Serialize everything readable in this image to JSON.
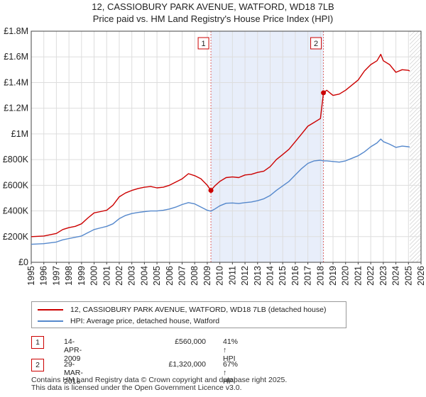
{
  "chart_data": {
    "type": "line",
    "title": "12, CASSIOBURY PARK AVENUE, WATFORD, WD18 7LB",
    "subtitle": "Price paid vs. HM Land Registry's House Price Index (HPI)",
    "xlim": [
      1995,
      2026
    ],
    "ylim": [
      0,
      1800000
    ],
    "x_ticks": [
      1995,
      1996,
      1997,
      1998,
      1999,
      2000,
      2001,
      2002,
      2003,
      2004,
      2005,
      2006,
      2007,
      2008,
      2009,
      2010,
      2011,
      2012,
      2013,
      2014,
      2015,
      2016,
      2017,
      2018,
      2019,
      2020,
      2021,
      2022,
      2023,
      2024,
      2025,
      2026
    ],
    "y_ticks": [
      {
        "value": 0,
        "label": "£0"
      },
      {
        "value": 200000,
        "label": "£200K"
      },
      {
        "value": 400000,
        "label": "£400K"
      },
      {
        "value": 600000,
        "label": "£600K"
      },
      {
        "value": 800000,
        "label": "£800K"
      },
      {
        "value": 1000000,
        "label": "£1M"
      },
      {
        "value": 1200000,
        "label": "£1.2M"
      },
      {
        "value": 1400000,
        "label": "£1.4M"
      },
      {
        "value": 1600000,
        "label": "£1.6M"
      },
      {
        "value": 1800000,
        "label": "£1.8M"
      }
    ],
    "grid": true,
    "shaded_period": [
      2009.29,
      2018.24
    ],
    "forecast_from": 2025.1,
    "series": [
      {
        "name": "12, CASSIOBURY PARK AVENUE, WATFORD, WD18 7LB (detached house)",
        "color": "#cc0000",
        "x": [
          1995.0,
          1996.0,
          1997.0,
          1997.5,
          1998.0,
          1998.5,
          1999.0,
          1999.5,
          2000.0,
          2000.5,
          2001.0,
          2001.5,
          2002.0,
          2002.5,
          2003.0,
          2003.5,
          2004.0,
          2004.5,
          2005.0,
          2005.5,
          2006.0,
          2006.5,
          2007.0,
          2007.5,
          2008.0,
          2008.5,
          2009.0,
          2009.29,
          2009.6,
          2010.0,
          2010.5,
          2011.0,
          2011.5,
          2012.0,
          2012.5,
          2013.0,
          2013.5,
          2014.0,
          2014.5,
          2015.0,
          2015.5,
          2016.0,
          2016.5,
          2017.0,
          2017.5,
          2018.0,
          2018.24,
          2018.5,
          2019.0,
          2019.5,
          2020.0,
          2020.5,
          2021.0,
          2021.5,
          2022.0,
          2022.5,
          2022.8,
          2023.0,
          2023.5,
          2024.0,
          2024.5,
          2025.0,
          2025.1
        ],
        "values": [
          200000,
          205000,
          225000,
          255000,
          270000,
          280000,
          300000,
          345000,
          385000,
          395000,
          405000,
          445000,
          510000,
          540000,
          560000,
          575000,
          585000,
          590000,
          580000,
          585000,
          600000,
          625000,
          650000,
          690000,
          675000,
          650000,
          600000,
          560000,
          595000,
          630000,
          660000,
          665000,
          660000,
          680000,
          685000,
          700000,
          710000,
          745000,
          800000,
          840000,
          880000,
          940000,
          1000000,
          1060000,
          1090000,
          1120000,
          1320000,
          1340000,
          1300000,
          1310000,
          1340000,
          1380000,
          1420000,
          1490000,
          1540000,
          1570000,
          1620000,
          1570000,
          1540000,
          1480000,
          1500000,
          1495000,
          1490000
        ]
      },
      {
        "name": "HPI: Average price, detached house, Watford",
        "color": "#5588cc",
        "x": [
          1995.0,
          1996.0,
          1997.0,
          1997.5,
          1998.0,
          1998.5,
          1999.0,
          1999.5,
          2000.0,
          2000.5,
          2001.0,
          2001.5,
          2002.0,
          2002.5,
          2003.0,
          2003.5,
          2004.0,
          2004.5,
          2005.0,
          2005.5,
          2006.0,
          2006.5,
          2007.0,
          2007.5,
          2008.0,
          2008.5,
          2009.0,
          2009.29,
          2009.6,
          2010.0,
          2010.5,
          2011.0,
          2011.5,
          2012.0,
          2012.5,
          2013.0,
          2013.5,
          2014.0,
          2014.5,
          2015.0,
          2015.5,
          2016.0,
          2016.5,
          2017.0,
          2017.5,
          2018.0,
          2018.24,
          2018.5,
          2019.0,
          2019.5,
          2020.0,
          2020.5,
          2021.0,
          2021.5,
          2022.0,
          2022.5,
          2022.8,
          2023.0,
          2023.5,
          2024.0,
          2024.5,
          2025.0,
          2025.1
        ],
        "values": [
          140000,
          145000,
          158000,
          175000,
          185000,
          195000,
          205000,
          230000,
          255000,
          268000,
          280000,
          300000,
          340000,
          365000,
          380000,
          388000,
          395000,
          400000,
          400000,
          405000,
          415000,
          430000,
          450000,
          465000,
          455000,
          430000,
          405000,
          398000,
          415000,
          440000,
          460000,
          462000,
          458000,
          465000,
          470000,
          480000,
          495000,
          520000,
          560000,
          595000,
          630000,
          680000,
          730000,
          770000,
          790000,
          795000,
          790000,
          790000,
          785000,
          780000,
          790000,
          810000,
          830000,
          860000,
          900000,
          930000,
          960000,
          940000,
          920000,
          895000,
          905000,
          900000,
          898000
        ]
      }
    ],
    "markers": [
      {
        "label": "1",
        "x": 2009.29,
        "value": 560000
      },
      {
        "label": "2",
        "x": 2018.24,
        "value": 1320000
      }
    ]
  },
  "legend": {
    "property_label": "12, CASSIOBURY PARK AVENUE, WATFORD, WD18 7LB (detached house)",
    "hpi_label": "HPI: Average price, detached house, Watford",
    "property_color": "#cc0000",
    "hpi_color": "#5588cc"
  },
  "transactions": [
    {
      "num": "1",
      "date": "14-APR-2009",
      "price": "£560,000",
      "hpi": "41% ↑ HPI"
    },
    {
      "num": "2",
      "date": "29-MAR-2018",
      "price": "£1,320,000",
      "hpi": "67% ↑ HPI"
    }
  ],
  "footer": {
    "line1": "Contains HM Land Registry data © Crown copyright and database right 2025.",
    "line2": "This data is licensed under the Open Government Licence v3.0."
  }
}
